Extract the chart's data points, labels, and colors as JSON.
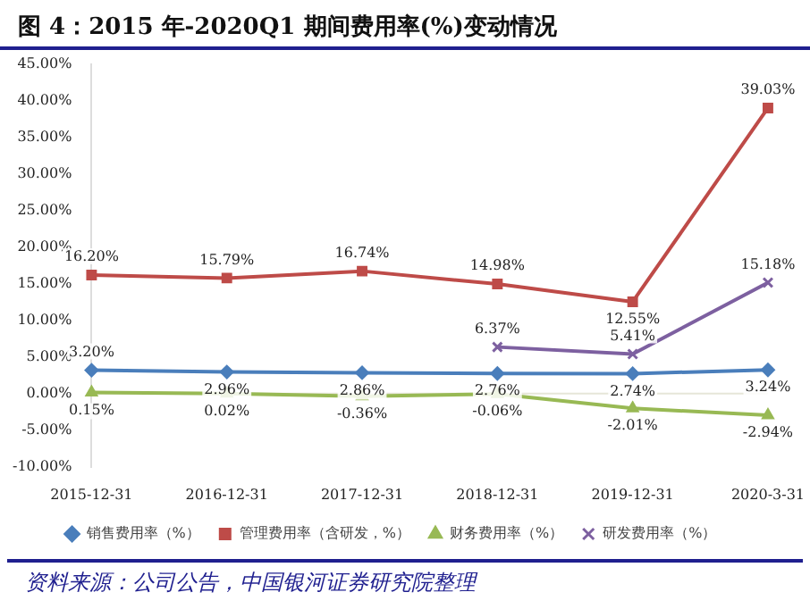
{
  "chart_data": {
    "type": "line",
    "title": "图 4：2015 年-2020Q1 期间费用率(%)变动情况",
    "categories": [
      "2015-12-31",
      "2016-12-31",
      "2017-12-31",
      "2018-12-31",
      "2019-12-31",
      "2020-3-31"
    ],
    "series": [
      {
        "name": "销售费用率（%）",
        "color": "#4a7ebb",
        "marker": "diamond",
        "values": [
          3.2,
          2.96,
          2.86,
          2.76,
          2.74,
          3.24
        ],
        "value_labels": [
          "3.20%",
          "2.96%",
          "2.86%",
          "2.76%",
          "2.74%",
          "3.24%"
        ]
      },
      {
        "name": "管理费用率（含研发，%）",
        "color": "#be4b48",
        "marker": "square",
        "values": [
          16.2,
          15.79,
          16.74,
          14.98,
          12.55,
          39.03
        ],
        "value_labels": [
          "16.20%",
          "15.79%",
          "16.74%",
          "14.98%",
          "12.55%",
          "39.03%"
        ]
      },
      {
        "name": "财务费用率（%）",
        "color": "#98b954",
        "marker": "triangle",
        "values": [
          0.15,
          0.02,
          -0.36,
          -0.06,
          -2.01,
          -2.94
        ],
        "value_labels": [
          "0.15%",
          "0.02%",
          "-0.36%",
          "-0.06%",
          "-2.01%",
          "-2.94%"
        ]
      },
      {
        "name": "研发费用率（%）",
        "color": "#7d60a0",
        "marker": "cross",
        "values": [
          null,
          null,
          null,
          6.37,
          5.41,
          15.18
        ],
        "value_labels": [
          null,
          null,
          null,
          "6.37%",
          "5.41%",
          "15.18%"
        ]
      }
    ],
    "ylim": [
      -10,
      45
    ],
    "yticks": [
      {
        "value": -10,
        "label": "-10.00%"
      },
      {
        "value": -5,
        "label": "-5.00%"
      },
      {
        "value": 0,
        "label": "0.00%"
      },
      {
        "value": 5,
        "label": "5.00%"
      },
      {
        "value": 10,
        "label": "10.00%"
      },
      {
        "value": 15,
        "label": "15.00%"
      },
      {
        "value": 20,
        "label": "20.00%"
      },
      {
        "value": 25,
        "label": "25.00%"
      },
      {
        "value": 30,
        "label": "30.00%"
      },
      {
        "value": 35,
        "label": "35.00%"
      },
      {
        "value": 40,
        "label": "40.00%"
      },
      {
        "value": 45,
        "label": "45.00%"
      }
    ],
    "legend": "bottom",
    "line_style": "solid",
    "annotations": [
      "资料来源：公司公告，中国银河证券研究院整理"
    ]
  }
}
